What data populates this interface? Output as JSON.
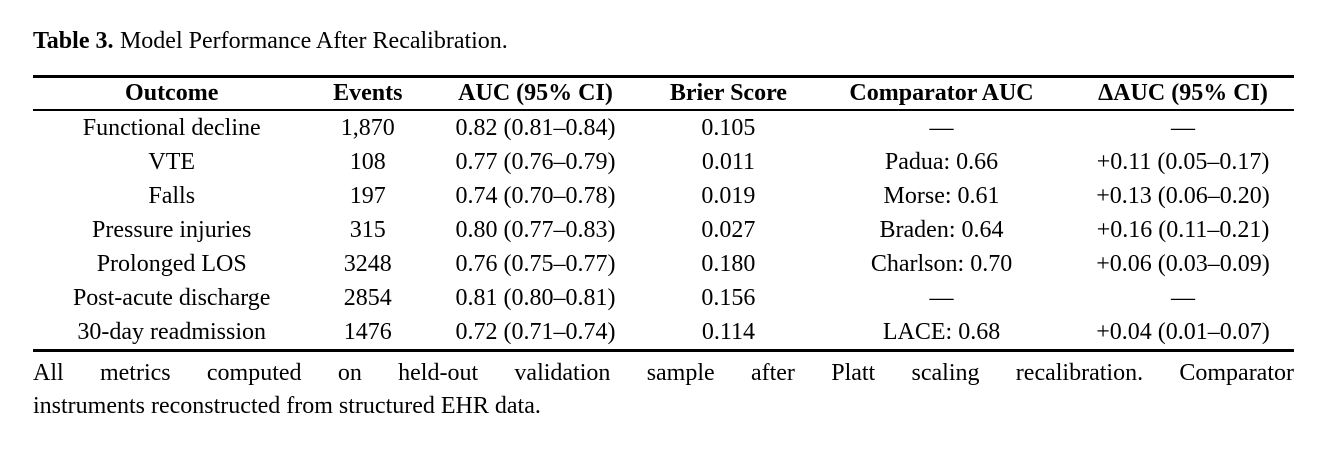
{
  "page": {
    "background_color": "#ffffff",
    "text_color": "#000000"
  },
  "title": {
    "label": "Table 3.",
    "text": "Model Performance After Recalibration."
  },
  "table": {
    "columns": [
      "Outcome",
      "Events",
      "AUC (95% CI)",
      "Brier Score",
      "Comparator AUC",
      "ΔAUC (95% CI)"
    ],
    "rows": [
      [
        "Functional decline",
        "1,870",
        "0.82 (0.81–0.84)",
        "0.105",
        "—",
        "—"
      ],
      [
        "VTE",
        "108",
        "0.77 (0.76–0.79)",
        "0.011",
        "Padua: 0.66",
        "+0.11 (0.05–0.17)"
      ],
      [
        "Falls",
        "197",
        "0.74 (0.70–0.78)",
        "0.019",
        "Morse: 0.61",
        "+0.13 (0.06–0.20)"
      ],
      [
        "Pressure injuries",
        "315",
        "0.80 (0.77–0.83)",
        "0.027",
        "Braden: 0.64",
        "+0.16 (0.11–0.21)"
      ],
      [
        "Prolonged LOS",
        "3248",
        "0.76 (0.75–0.77)",
        "0.180",
        "Charlson: 0.70",
        "+0.06 (0.03–0.09)"
      ],
      [
        "Post-acute discharge",
        "2854",
        "0.81 (0.80–0.81)",
        "0.156",
        "—",
        "—"
      ],
      [
        "30-day readmission",
        "1476",
        "0.72 (0.71–0.74)",
        "0.114",
        "LACE: 0.68",
        "+0.04 (0.01–0.07)"
      ]
    ]
  },
  "footnote": {
    "lines": [
      "All metrics computed on held-out validation sample after Platt scaling recalibration. Comparator",
      "instruments reconstructed from structured EHR data."
    ],
    "full_text": "All metrics computed on held-out validation sample after Platt scaling recalibration. Comparator instruments reconstructed from structured EHR data."
  }
}
